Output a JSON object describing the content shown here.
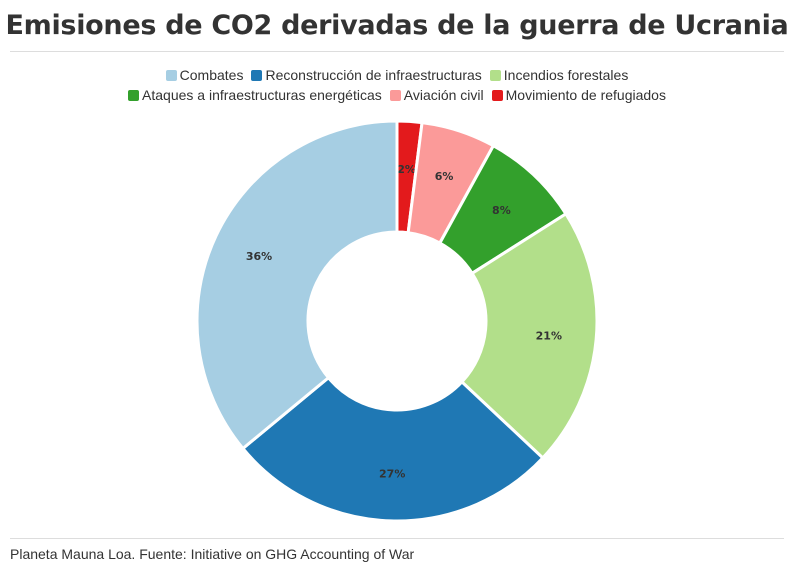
{
  "title": "Emisiones de CO2 derivadas de la guerra de Ucrania",
  "source": "Planeta Mauna Loa. Fuente: Initiative on GHG Accounting of War",
  "chart_data": {
    "type": "pie",
    "donut": true,
    "title": "Emisiones de CO2 derivadas de la guerra de Ucrania",
    "legend_position": "top",
    "categories": [
      "Combates",
      "Reconstrucción de infraestructuras",
      "Incendios forestales",
      "Ataques a infraestructuras energéticas",
      "Aviación civil",
      "Movimiento de refugiados"
    ],
    "values": [
      36,
      27,
      21,
      8,
      6,
      2
    ],
    "labels": [
      "36%",
      "27%",
      "21%",
      "8%",
      "6%",
      "2%"
    ],
    "colors": [
      "#a6cee3",
      "#1f78b4",
      "#b2df8a",
      "#33a02c",
      "#fb9a99",
      "#e31a1c"
    ]
  }
}
